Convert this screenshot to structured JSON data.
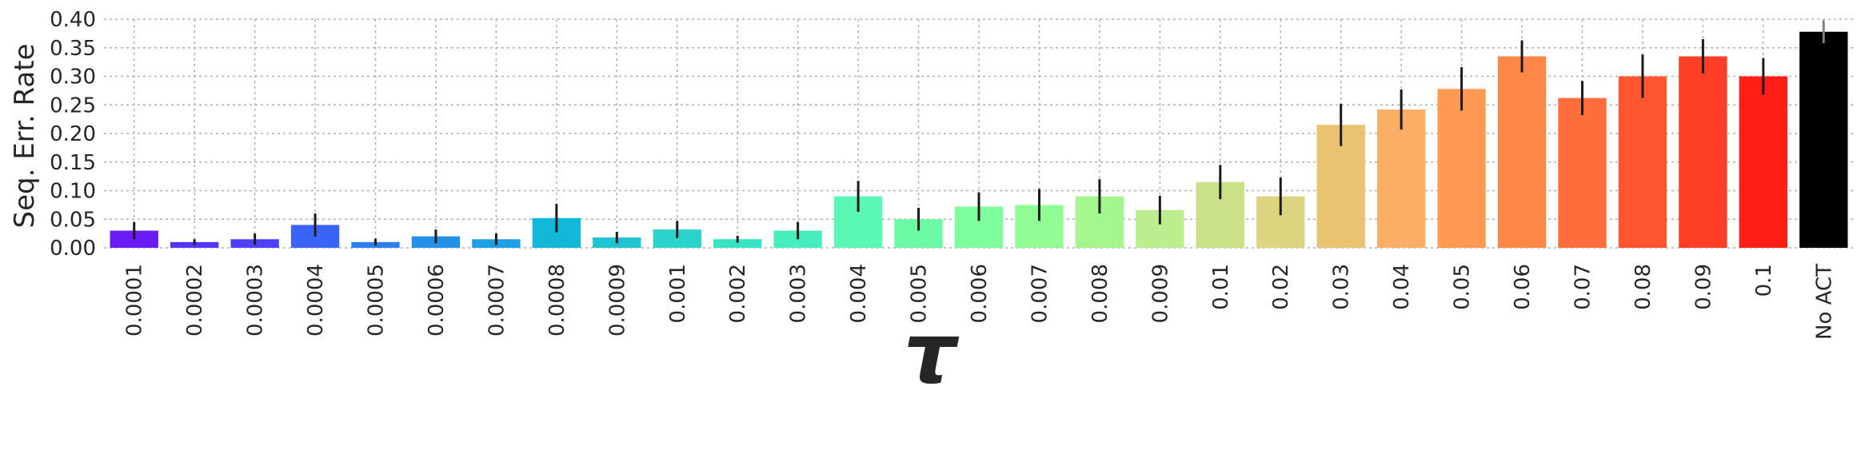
{
  "chart_data": {
    "type": "bar",
    "xlabel": "τ",
    "ylabel": "Seq. Err. Rate",
    "ylim": [
      0,
      0.4
    ],
    "yticks": [
      "0.00",
      "0.05",
      "0.10",
      "0.15",
      "0.20",
      "0.25",
      "0.30",
      "0.35",
      "0.40"
    ],
    "grid": true,
    "categories": [
      "0.0001",
      "0.0002",
      "0.0003",
      "0.0004",
      "0.0005",
      "0.0006",
      "0.0007",
      "0.0008",
      "0.0009",
      "0.001",
      "0.002",
      "0.003",
      "0.004",
      "0.005",
      "0.006",
      "0.007",
      "0.008",
      "0.009",
      "0.01",
      "0.02",
      "0.03",
      "0.04",
      "0.05",
      "0.06",
      "0.07",
      "0.08",
      "0.09",
      "0.1",
      "No ACT"
    ],
    "values": [
      0.03,
      0.01,
      0.015,
      0.04,
      0.01,
      0.02,
      0.015,
      0.052,
      0.018,
      0.032,
      0.015,
      0.03,
      0.09,
      0.05,
      0.072,
      0.075,
      0.09,
      0.066,
      0.115,
      0.09,
      0.215,
      0.242,
      0.278,
      0.335,
      0.262,
      0.3,
      0.335,
      0.3,
      0.378
    ],
    "errors": [
      0.015,
      0.005,
      0.01,
      0.02,
      0.006,
      0.012,
      0.01,
      0.025,
      0.01,
      0.015,
      0.006,
      0.015,
      0.027,
      0.02,
      0.025,
      0.028,
      0.03,
      0.025,
      0.03,
      0.033,
      0.037,
      0.035,
      0.038,
      0.028,
      0.03,
      0.038,
      0.03,
      0.032,
      0.02
    ],
    "colors": [
      "#6a1cf6",
      "#5733fc",
      "#4c40fb",
      "#3a63f7",
      "#2d7ef0",
      "#2590e7",
      "#1e9ee3",
      "#12b8d8",
      "#1ec4d2",
      "#2bd4cb",
      "#38e2c5",
      "#48edbd",
      "#5af8b2",
      "#6cf9a6",
      "#7efd9c",
      "#91fd94",
      "#a3f78d",
      "#bced8f",
      "#cbe188",
      "#dbd580",
      "#ebc26f",
      "#fbaf64",
      "#ff9a54",
      "#ff8747",
      "#ff6d3a",
      "#ff5530",
      "#ff3f25",
      "#ff1e16",
      "#000000"
    ]
  }
}
